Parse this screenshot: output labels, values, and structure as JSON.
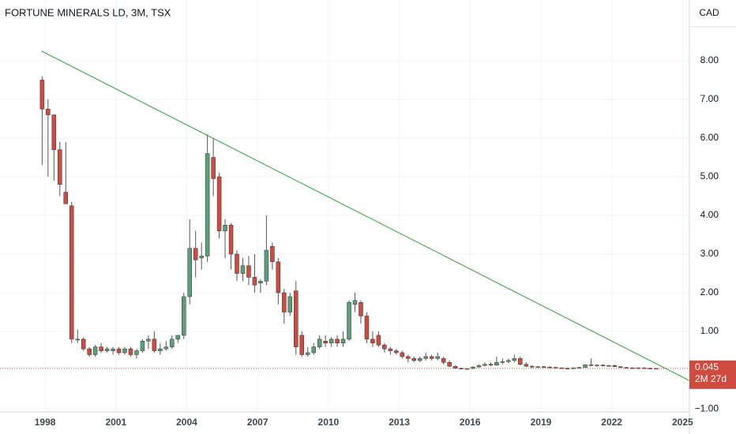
{
  "chart_data": {
    "type": "candlestick",
    "title": "FORTUNE MINERALS LD, 3M, TSX",
    "currency": "CAD",
    "up_color": "#5b9e7a",
    "down_color": "#cf4a3f",
    "grid": true,
    "xlim": [
      1996.09,
      2025.29
    ],
    "ylim": [
      -1.08,
      9.57
    ],
    "xticks": [
      1998,
      2001,
      2004,
      2007,
      2010,
      2013,
      2016,
      2019,
      2022,
      2025
    ],
    "yticks": [
      {
        "value": -1,
        "label": "−1.00"
      },
      {
        "value": 1,
        "label": "1.00"
      },
      {
        "value": 2,
        "label": "2.00"
      },
      {
        "value": 3,
        "label": "3.00"
      },
      {
        "value": 4,
        "label": "4.00"
      },
      {
        "value": 5,
        "label": "5.00"
      },
      {
        "value": 6,
        "label": "6.00"
      },
      {
        "value": 7,
        "label": "7.00"
      },
      {
        "value": 8,
        "label": "8.00"
      }
    ],
    "x": [
      1997.875,
      1998.125,
      1998.375,
      1998.625,
      1998.875,
      1999.125,
      1999.375,
      1999.625,
      1999.875,
      2000.125,
      2000.375,
      2000.625,
      2000.875,
      2001.125,
      2001.375,
      2001.625,
      2001.875,
      2002.125,
      2002.375,
      2002.625,
      2002.875,
      2003.125,
      2003.375,
      2003.625,
      2003.875,
      2004.125,
      2004.375,
      2004.625,
      2004.875,
      2005.125,
      2005.375,
      2005.625,
      2005.875,
      2006.125,
      2006.375,
      2006.625,
      2006.875,
      2007.125,
      2007.375,
      2007.625,
      2007.875,
      2008.125,
      2008.375,
      2008.625,
      2008.875,
      2009.125,
      2009.375,
      2009.625,
      2009.875,
      2010.125,
      2010.375,
      2010.625,
      2010.875,
      2011.125,
      2011.375,
      2011.625,
      2011.875,
      2012.125,
      2012.375,
      2012.625,
      2012.875,
      2013.125,
      2013.375,
      2013.625,
      2013.875,
      2014.125,
      2014.375,
      2014.625,
      2014.875,
      2015.125,
      2015.375,
      2015.625,
      2015.875,
      2016.125,
      2016.375,
      2016.625,
      2016.875,
      2017.125,
      2017.375,
      2017.625,
      2017.875,
      2018.125,
      2018.375,
      2018.625,
      2018.875,
      2019.125,
      2019.375,
      2019.625,
      2019.875,
      2020.125,
      2020.375,
      2020.625,
      2020.875,
      2021.125,
      2021.375,
      2021.625,
      2021.875,
      2022.125,
      2022.375,
      2022.625,
      2022.875,
      2023.125,
      2023.375,
      2023.625,
      2023.875
    ],
    "open": [
      7.5,
      6.75,
      6.6,
      5.7,
      4.6,
      4.25,
      0.8,
      0.8,
      0.55,
      0.4,
      0.6,
      0.5,
      0.5,
      0.55,
      0.45,
      0.55,
      0.4,
      0.5,
      0.75,
      0.8,
      0.5,
      0.55,
      0.6,
      0.8,
      0.9,
      1.9,
      3.15,
      2.9,
      2.95,
      5.5,
      5.0,
      3.6,
      3.75,
      3.0,
      2.5,
      2.7,
      2.4,
      2.25,
      2.3,
      3.2,
      2.8,
      2.0,
      1.5,
      2.05,
      0.9,
      0.4,
      0.45,
      0.6,
      0.75,
      0.7,
      0.8,
      0.7,
      0.8,
      1.7,
      1.75,
      1.4,
      0.8,
      0.9,
      0.65,
      0.55,
      0.5,
      0.45,
      0.35,
      0.3,
      0.25,
      0.3,
      0.35,
      0.3,
      0.3,
      0.2,
      0.1,
      0.05,
      0.03,
      0.04,
      0.08,
      0.12,
      0.15,
      0.13,
      0.2,
      0.22,
      0.25,
      0.3,
      0.15,
      0.1,
      0.08,
      0.09,
      0.08,
      0.07,
      0.06,
      0.05,
      0.04,
      0.06,
      0.07,
      0.14,
      0.12,
      0.13,
      0.11,
      0.12,
      0.09,
      0.07,
      0.06,
      0.05,
      0.06,
      0.05,
      0.045
    ],
    "high": [
      7.6,
      7.0,
      6.6,
      5.9,
      5.9,
      4.35,
      1.05,
      0.85,
      0.6,
      0.65,
      0.7,
      0.6,
      0.6,
      0.6,
      0.6,
      0.6,
      0.55,
      0.8,
      0.9,
      1.0,
      0.7,
      0.75,
      0.9,
      0.9,
      2.0,
      3.9,
      3.6,
      3.3,
      6.1,
      6.0,
      5.1,
      3.9,
      3.8,
      3.1,
      2.9,
      2.95,
      3.0,
      2.35,
      4.0,
      3.3,
      2.9,
      2.1,
      2.0,
      2.3,
      1.0,
      0.6,
      0.7,
      0.9,
      0.9,
      0.85,
      0.9,
      1.0,
      1.8,
      2.0,
      1.8,
      1.5,
      1.0,
      1.0,
      0.7,
      0.6,
      0.55,
      0.5,
      0.4,
      0.35,
      0.35,
      0.45,
      0.4,
      0.45,
      0.35,
      0.25,
      0.12,
      0.06,
      0.05,
      0.1,
      0.15,
      0.2,
      0.2,
      0.35,
      0.3,
      0.3,
      0.4,
      0.35,
      0.2,
      0.12,
      0.1,
      0.1,
      0.1,
      0.08,
      0.07,
      0.06,
      0.07,
      0.08,
      0.15,
      0.3,
      0.15,
      0.15,
      0.14,
      0.14,
      0.1,
      0.08,
      0.07,
      0.07,
      0.07,
      0.06,
      0.05
    ],
    "low": [
      5.3,
      5.0,
      4.9,
      4.5,
      4.3,
      0.7,
      0.7,
      0.5,
      0.35,
      0.35,
      0.45,
      0.45,
      0.4,
      0.4,
      0.4,
      0.35,
      0.3,
      0.45,
      0.55,
      0.45,
      0.4,
      0.5,
      0.55,
      0.7,
      0.8,
      1.7,
      2.4,
      2.6,
      2.8,
      4.5,
      3.4,
      2.9,
      2.6,
      2.3,
      2.3,
      2.2,
      2.0,
      2.0,
      2.2,
      2.6,
      1.7,
      1.2,
      1.4,
      0.4,
      0.35,
      0.35,
      0.4,
      0.55,
      0.6,
      0.6,
      0.6,
      0.6,
      0.75,
      1.5,
      1.2,
      0.7,
      0.6,
      0.6,
      0.45,
      0.4,
      0.4,
      0.3,
      0.2,
      0.2,
      0.2,
      0.25,
      0.25,
      0.25,
      0.15,
      0.08,
      0.03,
      0.02,
      0.02,
      0.03,
      0.07,
      0.1,
      0.1,
      0.12,
      0.15,
      0.18,
      0.2,
      0.12,
      0.08,
      0.05,
      0.06,
      0.06,
      0.06,
      0.05,
      0.04,
      0.03,
      0.03,
      0.05,
      0.06,
      0.1,
      0.09,
      0.1,
      0.09,
      0.08,
      0.06,
      0.05,
      0.04,
      0.04,
      0.04,
      0.04,
      0.04
    ],
    "close": [
      6.75,
      6.6,
      5.7,
      4.8,
      4.3,
      0.8,
      0.8,
      0.55,
      0.4,
      0.6,
      0.5,
      0.55,
      0.55,
      0.45,
      0.55,
      0.4,
      0.5,
      0.75,
      0.8,
      0.5,
      0.55,
      0.6,
      0.8,
      0.9,
      1.9,
      3.15,
      2.85,
      2.95,
      5.6,
      4.95,
      3.6,
      3.75,
      3.0,
      2.5,
      2.7,
      2.4,
      2.2,
      2.3,
      3.1,
      2.8,
      2.0,
      1.5,
      1.9,
      0.6,
      0.4,
      0.45,
      0.6,
      0.8,
      0.7,
      0.8,
      0.7,
      0.8,
      1.75,
      1.8,
      1.4,
      0.8,
      0.7,
      0.65,
      0.55,
      0.5,
      0.45,
      0.35,
      0.3,
      0.25,
      0.3,
      0.35,
      0.3,
      0.35,
      0.2,
      0.1,
      0.05,
      0.03,
      0.04,
      0.08,
      0.12,
      0.15,
      0.13,
      0.2,
      0.22,
      0.25,
      0.3,
      0.15,
      0.1,
      0.08,
      0.09,
      0.08,
      0.07,
      0.06,
      0.05,
      0.04,
      0.06,
      0.07,
      0.14,
      0.12,
      0.13,
      0.11,
      0.12,
      0.09,
      0.07,
      0.06,
      0.05,
      0.06,
      0.05,
      0.045,
      0.045
    ],
    "trendline": {
      "x": [
        1997.85,
        2025.29
      ],
      "y": [
        8.25,
        -0.27
      ],
      "color": "#4caf50"
    },
    "last_price": {
      "value": 0.045,
      "countdown": "2M 27d",
      "color": "#cf4a3f"
    }
  }
}
